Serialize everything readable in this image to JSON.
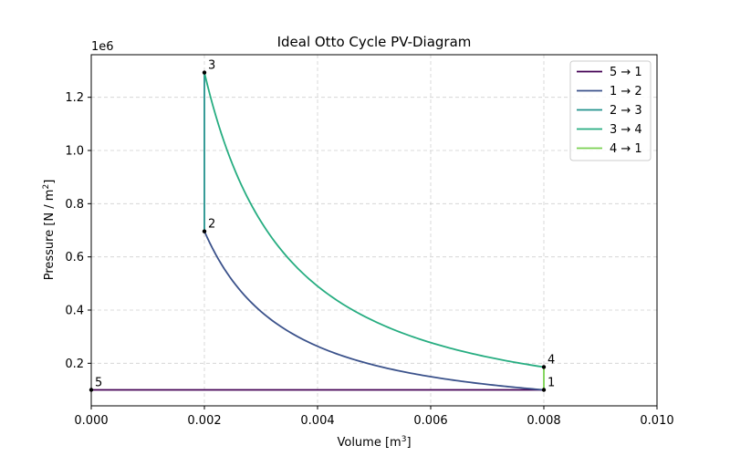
{
  "chart_data": {
    "type": "line",
    "title": "Ideal Otto Cycle PV-Diagram",
    "xlabel": "Volume [m",
    "xlabel_sup": "3",
    "xlabel_end": "]",
    "ylabel": "Pressure [N / m",
    "ylabel_sup": "2",
    "ylabel_end": "]",
    "y_offset_label": "1e6",
    "xlim": [
      0.0,
      0.01
    ],
    "ylim": [
      0.04,
      1.36
    ],
    "xticks": [
      0.0,
      0.002,
      0.004,
      0.006,
      0.008,
      0.01
    ],
    "xtick_labels": [
      "0.000",
      "0.002",
      "0.004",
      "0.006",
      "0.008",
      "0.010"
    ],
    "yticks": [
      0.2,
      0.4,
      0.6,
      0.8,
      1.0,
      1.2
    ],
    "ytick_labels": [
      "0.2",
      "0.4",
      "0.6",
      "0.8",
      "1.0",
      "1.2"
    ],
    "grid": true,
    "legend_position": "top-right",
    "gamma": 1.4,
    "series": [
      {
        "name": "5 → 1",
        "color": "#440154",
        "kind": "line",
        "from": [
          0.0,
          0.1
        ],
        "to": [
          0.008,
          0.1
        ]
      },
      {
        "name": "1 → 2",
        "color": "#3b528b",
        "kind": "adiabatic",
        "from": [
          0.008,
          0.1
        ],
        "to": [
          0.002,
          0.696
        ]
      },
      {
        "name": "2 → 3",
        "color": "#21918c",
        "kind": "line",
        "from": [
          0.002,
          0.696
        ],
        "to": [
          0.002,
          1.293
        ]
      },
      {
        "name": "3 → 4",
        "color": "#27ad81",
        "kind": "adiabatic",
        "from": [
          0.002,
          1.293
        ],
        "to": [
          0.008,
          0.186
        ]
      },
      {
        "name": "4 → 1",
        "color": "#7ad151",
        "kind": "line",
        "from": [
          0.008,
          0.186
        ],
        "to": [
          0.008,
          0.1
        ]
      }
    ],
    "points": [
      {
        "label": "1",
        "x": 0.008,
        "y": 0.1
      },
      {
        "label": "2",
        "x": 0.002,
        "y": 0.696
      },
      {
        "label": "3",
        "x": 0.002,
        "y": 1.293
      },
      {
        "label": "4",
        "x": 0.008,
        "y": 0.186
      },
      {
        "label": "5",
        "x": 0.0,
        "y": 0.1
      }
    ]
  }
}
